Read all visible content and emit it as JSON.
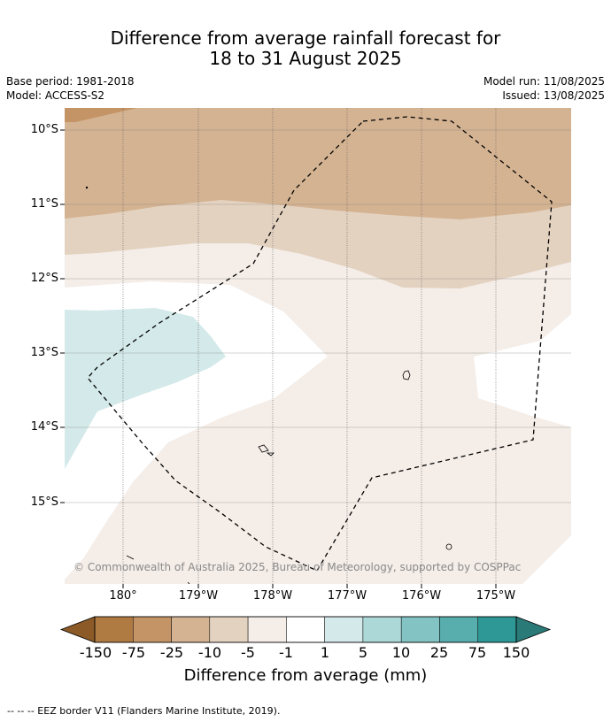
{
  "title_line1": "Difference from average rainfall forecast for",
  "title_line2": "18 to 31 August 2025",
  "base_period": "Base period: 1981-2018",
  "model": "Model: ACCESS-S2",
  "model_run": "Model run: 11/08/2025",
  "issued": "Issued: 13/08/2025",
  "lat_labels": [
    "10°S",
    "11°S",
    "12°S",
    "13°S",
    "14°S",
    "15°S"
  ],
  "lon_labels": [
    "180°",
    "179°W",
    "178°W",
    "177°W",
    "176°W",
    "175°W"
  ],
  "copyright": "© Commonwealth of Australia 2025, Bureau of Meteorology, supported by COSPPac",
  "colorbar": {
    "labels": [
      "-150",
      "-75",
      "-25",
      "-10",
      "-5",
      "-1",
      "1",
      "5",
      "10",
      "25",
      "75",
      "150"
    ],
    "colors": [
      "#8c5a27",
      "#b07a43",
      "#c49466",
      "#d4b392",
      "#e4d2c0",
      "#f4ede8",
      "#ffffff",
      "#d4e9e9",
      "#acd8d8",
      "#84c3c3",
      "#58adad",
      "#2e9896",
      "#2a7a78"
    ],
    "title": "Difference from average (mm)"
  },
  "footer": "--  --  -- EEZ border V11 (Flanders Marine Institute, 2019)."
}
